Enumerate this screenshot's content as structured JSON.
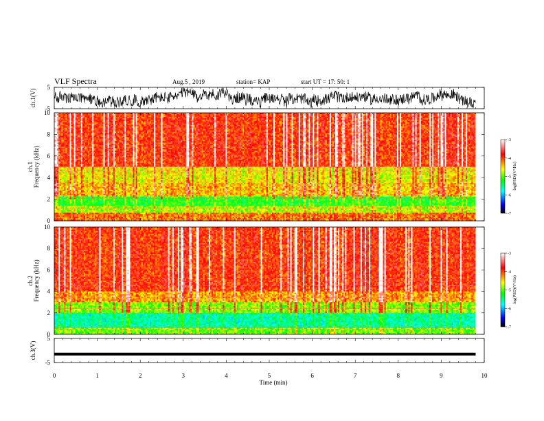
{
  "header": {
    "title": "VLF Spectra",
    "date": "Aug.5  , 2019",
    "station": "station= KAP",
    "start": "start  UT  =    17: 50: 1"
  },
  "chart_data": [
    {
      "type": "line",
      "name": "ch1-waveform",
      "ylabel": "ch.1(V)",
      "ylim": [
        -5,
        5
      ],
      "yticks": [
        "5",
        "-5"
      ],
      "xlim": [
        0,
        10
      ],
      "x_end": 9.8,
      "description_values": {
        "typical_range": [
          -3.5,
          4.5
        ]
      }
    },
    {
      "type": "heatmap",
      "name": "ch1-spectrogram",
      "ylabel": "ch.1\nFrequency (kHz)",
      "ylim": [
        0,
        10
      ],
      "yticks": [
        "0",
        "2",
        "4",
        "6",
        "8",
        "10"
      ],
      "xlim": [
        0,
        10
      ],
      "x_end": 9.8,
      "colorbar": {
        "label": "log(PSD)(V²/Hz)",
        "range": [
          -7,
          -3
        ],
        "ticks": [
          "-3",
          "-4",
          "-5",
          "-6",
          "-7"
        ],
        "colors": [
          "#000000",
          "#0000ff",
          "#00ffff",
          "#00ff00",
          "#ffff00",
          "#ff0000",
          "#ffffff"
        ]
      },
      "bands": [
        {
          "from": 0,
          "to": 0.8,
          "level": -4.2
        },
        {
          "from": 0.8,
          "to": 1.4,
          "level": -4.8
        },
        {
          "from": 1.4,
          "to": 2.2,
          "level": -5.2
        },
        {
          "from": 2.2,
          "to": 3.5,
          "level": -4.4
        },
        {
          "from": 3.5,
          "to": 5.0,
          "level": -4.6
        },
        {
          "from": 5.0,
          "to": 10.0,
          "level": -3.9
        }
      ]
    },
    {
      "type": "heatmap",
      "name": "ch2-spectrogram",
      "ylabel": "ch.2\nFrequency (kHz)",
      "ylim": [
        0,
        10
      ],
      "yticks": [
        "0",
        "2",
        "4",
        "6",
        "8",
        "10"
      ],
      "xlim": [
        0,
        10
      ],
      "x_end": 9.8,
      "colorbar": {
        "label": "log(PSD)(V²/Hz)",
        "range": [
          -7,
          -3
        ],
        "ticks": [
          "-3",
          "-4",
          "-5",
          "-6",
          "-7"
        ],
        "colors": [
          "#000000",
          "#0000ff",
          "#00ffff",
          "#00ff00",
          "#ffff00",
          "#ff0000",
          "#ffffff"
        ]
      },
      "bands": [
        {
          "from": 0,
          "to": 0.6,
          "level": -5.0
        },
        {
          "from": 0.6,
          "to": 2.0,
          "level": -5.6
        },
        {
          "from": 2.0,
          "to": 3.0,
          "level": -4.9
        },
        {
          "from": 3.0,
          "to": 4.0,
          "level": -4.3
        },
        {
          "from": 4.0,
          "to": 10.0,
          "level": -3.9
        }
      ]
    },
    {
      "type": "line",
      "name": "ch3-waveform",
      "ylabel": "ch.3(V)",
      "ylim": [
        -5,
        5
      ],
      "yticks": [
        "5",
        "-5"
      ],
      "xlim": [
        0,
        10
      ],
      "x_end": 9.8,
      "constant_value": -1.5
    }
  ],
  "xaxis": {
    "label": "Time  (min)",
    "ticks": [
      "0",
      "1",
      "2",
      "3",
      "4",
      "5",
      "6",
      "7",
      "8",
      "9",
      "10"
    ]
  },
  "colorbar_labels": {
    "ch1": "log(PSD)(V²/Hz)",
    "ch2": "log(PSD)(V²/Hz)"
  }
}
